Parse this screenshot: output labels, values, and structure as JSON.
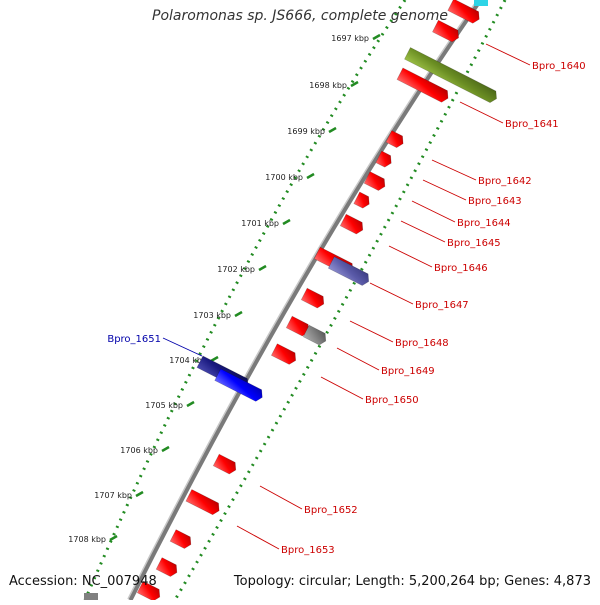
{
  "title": "Polaromonas sp. JS666, complete genome",
  "accession_text": "Accession: NC_007948",
  "topology_text": "Topology: circular; Length: 5,200,264 bp; Genes: 4,873",
  "colors": {
    "forward_gene": "#ff0000",
    "reverse_gene": "#ff0000",
    "highlight_dark": "#1a1a80",
    "highlight_blue": "#0000ff",
    "hypothetical_purple": "#5a5aa8",
    "rna_olive": "#6b8e23",
    "other_gray": "#808080",
    "tick_green": "#228b22",
    "backbone_gray": "#808080",
    "label_red": "#cc0000",
    "label_blue": "#0000aa"
  },
  "kbp_ticks": [
    "1697 kbp",
    "1698 kbp",
    "1699 kbp",
    "1700 kbp",
    "1701 kbp",
    "1702 kbp",
    "1703 kbp",
    "1704 kbp",
    "1705 kbp",
    "1706 kbp",
    "1707 kbp",
    "1708 kbp"
  ],
  "gene_labels": [
    {
      "name": "Bpro_1640",
      "color": "#cc0000"
    },
    {
      "name": "Bpro_1641",
      "color": "#cc0000"
    },
    {
      "name": "Bpro_1642",
      "color": "#cc0000"
    },
    {
      "name": "Bpro_1643",
      "color": "#cc0000"
    },
    {
      "name": "Bpro_1644",
      "color": "#cc0000"
    },
    {
      "name": "Bpro_1645",
      "color": "#cc0000"
    },
    {
      "name": "Bpro_1646",
      "color": "#cc0000"
    },
    {
      "name": "Bpro_1647",
      "color": "#cc0000"
    },
    {
      "name": "Bpro_1648",
      "color": "#cc0000"
    },
    {
      "name": "Bpro_1649",
      "color": "#cc0000"
    },
    {
      "name": "Bpro_1650",
      "color": "#cc0000"
    },
    {
      "name": "Bpro_1651",
      "color": "#0000aa"
    },
    {
      "name": "Bpro_1652",
      "color": "#cc0000"
    },
    {
      "name": "Bpro_1653",
      "color": "#cc0000"
    }
  ]
}
